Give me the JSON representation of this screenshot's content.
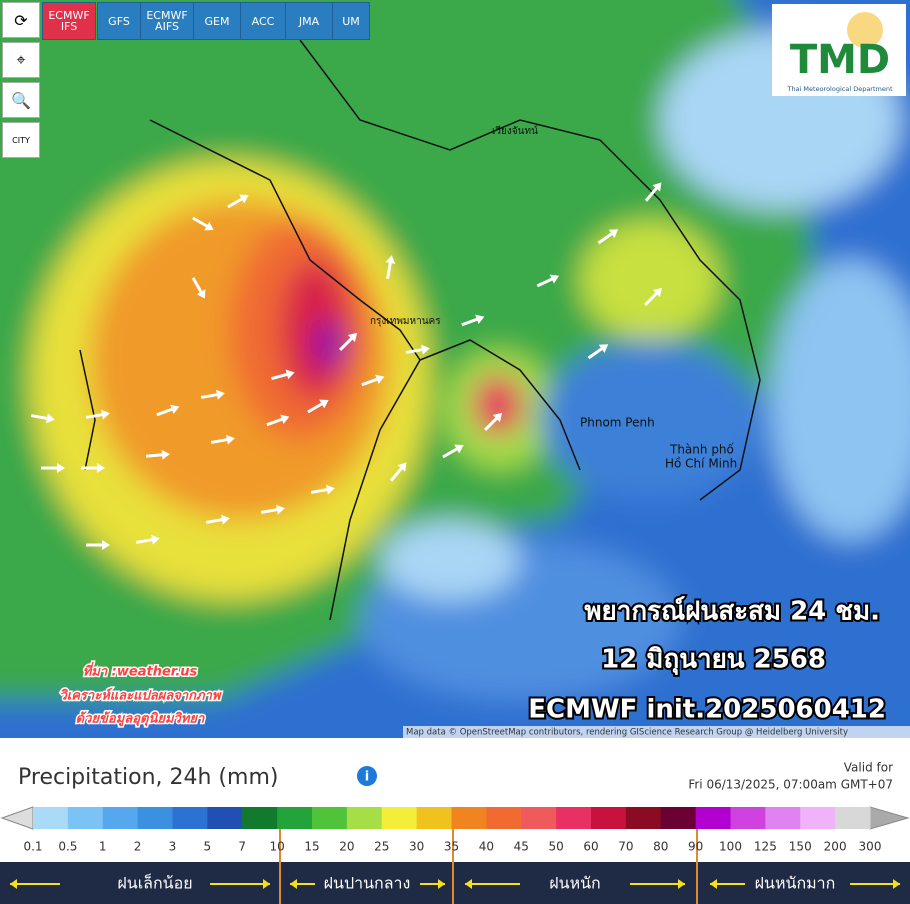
{
  "toolbar": {
    "models": [
      "ECMWF IFS",
      "GFS",
      "ECMWF AIFS",
      "GEM",
      "ACC",
      "JMA",
      "UM"
    ],
    "city": "CITY"
  },
  "logo": {
    "title": "TMD",
    "subtitle": "Thai Meteorological Department"
  },
  "overlay": {
    "lines": [
      "พยากรณ์ฝนสะสม 24 ชม.",
      "12 มิถุนายน 2568",
      "ECMWF init.2025060412"
    ],
    "source": [
      "ที่มา :weather.us",
      "วิเคราะห์และแปลผลจากภาพ",
      "ด้วยข้อมูลอุตุนิยมวิทยา"
    ]
  },
  "map": {
    "places": [
      "Phnom Penh",
      "Thành phố",
      "Hồ Chí Minh",
      "กรุงเทพมหานคร",
      "เวียงจันทน์"
    ],
    "attribution": "Map data © OpenStreetMap contributors, rendering GIScience Research Group @ Heidelberg University"
  },
  "legend": {
    "title": "Precipitation, 24h (mm)",
    "valid_label": "Valid for",
    "valid_time": "Fri 06/13/2025, 07:00am GMT+07",
    "ticks": [
      0.1,
      0.5,
      1,
      2,
      3,
      5,
      7,
      10,
      15,
      20,
      25,
      30,
      35,
      40,
      45,
      50,
      60,
      70,
      80,
      90,
      100,
      125,
      150,
      200,
      300
    ],
    "colors": [
      "#a9daf8",
      "#7cc3f5",
      "#55a8ee",
      "#3c90e0",
      "#2c72d2",
      "#1f50b2",
      "#127a2c",
      "#22a43a",
      "#4fc43a",
      "#a6de48",
      "#f4ee3a",
      "#efc21f",
      "#ef8421",
      "#f06a31",
      "#f05a5c",
      "#e83062",
      "#c8113c",
      "#8b0b22",
      "#6a0033",
      "#b100d0",
      "#d042e0",
      "#e082f0",
      "#f0b2f8",
      "#d8d8d8"
    ],
    "categories": [
      "ฝนเล็กน้อย",
      "ฝนปานกลาง",
      "ฝนหนัก",
      "ฝนหนักมาก"
    ]
  }
}
